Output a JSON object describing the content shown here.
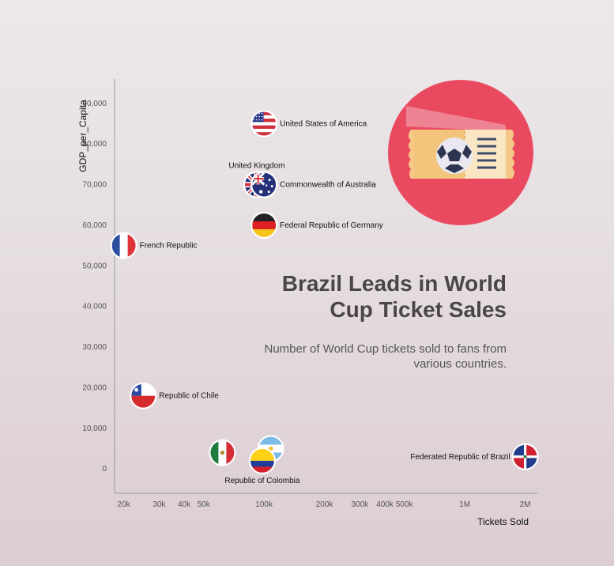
{
  "chart_data": {
    "type": "scatter",
    "title": "Brazil Leads in World Cup Ticket Sales",
    "subtitle": "Number of World Cup tickets sold to fans from various countries.",
    "xlabel": "Tickets Sold",
    "ylabel": "GDP_per_Capita",
    "xscale": "log",
    "xlim": [
      18000,
      2300000
    ],
    "ylim": [
      -6000,
      96000
    ],
    "xticks": [
      {
        "v": 20000,
        "label": "20k"
      },
      {
        "v": 30000,
        "label": "30k"
      },
      {
        "v": 40000,
        "label": "40k"
      },
      {
        "v": 50000,
        "label": "50k"
      },
      {
        "v": 100000,
        "label": "100k"
      },
      {
        "v": 200000,
        "label": "200k"
      },
      {
        "v": 300000,
        "label": "300k"
      },
      {
        "v": 400000,
        "label": "400k"
      },
      {
        "v": 500000,
        "label": "500k"
      },
      {
        "v": 1000000,
        "label": "1M"
      },
      {
        "v": 2000000,
        "label": "2M"
      }
    ],
    "yticks": [
      {
        "v": 0,
        "label": "0"
      },
      {
        "v": 10000,
        "label": "10,000"
      },
      {
        "v": 20000,
        "label": "20,000"
      },
      {
        "v": 30000,
        "label": "30,000"
      },
      {
        "v": 40000,
        "label": "40,000"
      },
      {
        "v": 50000,
        "label": "50,000"
      },
      {
        "v": 60000,
        "label": "60,000"
      },
      {
        "v": 70000,
        "label": "70,000"
      },
      {
        "v": 80000,
        "label": "80,000"
      },
      {
        "v": 90000,
        "label": "90,000"
      }
    ],
    "points": [
      {
        "name": "United States of America",
        "label": "United States of America",
        "x": 100000,
        "y": 85000,
        "flag": "usa",
        "label_pos": "right"
      },
      {
        "name": "United Kingdom",
        "label": "United Kingdom",
        "x": 92000,
        "y": 70000,
        "flag": "uk",
        "label_pos": "above"
      },
      {
        "name": "Commonwealth of Australia",
        "label": "Commonwealth of Australia",
        "x": 100000,
        "y": 70000,
        "flag": "australia",
        "label_pos": "right"
      },
      {
        "name": "Federal Republic of Germany",
        "label": "Federal Republic of Germany",
        "x": 100000,
        "y": 60000,
        "flag": "germany",
        "label_pos": "right"
      },
      {
        "name": "French Republic",
        "label": "French Republic",
        "x": 20000,
        "y": 55000,
        "flag": "france",
        "label_pos": "right"
      },
      {
        "name": "Republic of Chile",
        "label": "Republic of Chile",
        "x": 25000,
        "y": 18000,
        "flag": "chile",
        "label_pos": "right"
      },
      {
        "name": "Mexico",
        "label": "",
        "x": 62000,
        "y": 4000,
        "flag": "mexico",
        "label_pos": "none"
      },
      {
        "name": "Argentina",
        "label": "",
        "x": 108000,
        "y": 5000,
        "flag": "argentina",
        "label_pos": "none"
      },
      {
        "name": "Republic of Colombia",
        "label": "Republic of Colombia",
        "x": 98000,
        "y": 2000,
        "flag": "colombia",
        "label_pos": "below"
      },
      {
        "name": "Federated Republic of Brazil",
        "label": "Federated Republic of Brazil",
        "x": 2000000,
        "y": 3000,
        "flag": "dominican",
        "label_pos": "left"
      }
    ]
  },
  "colors": {
    "accent_circle": "#ea4a60",
    "axis": "#999999",
    "title": "#4a4648"
  },
  "illustration": {
    "icon": "soccer-ticket-icon"
  }
}
